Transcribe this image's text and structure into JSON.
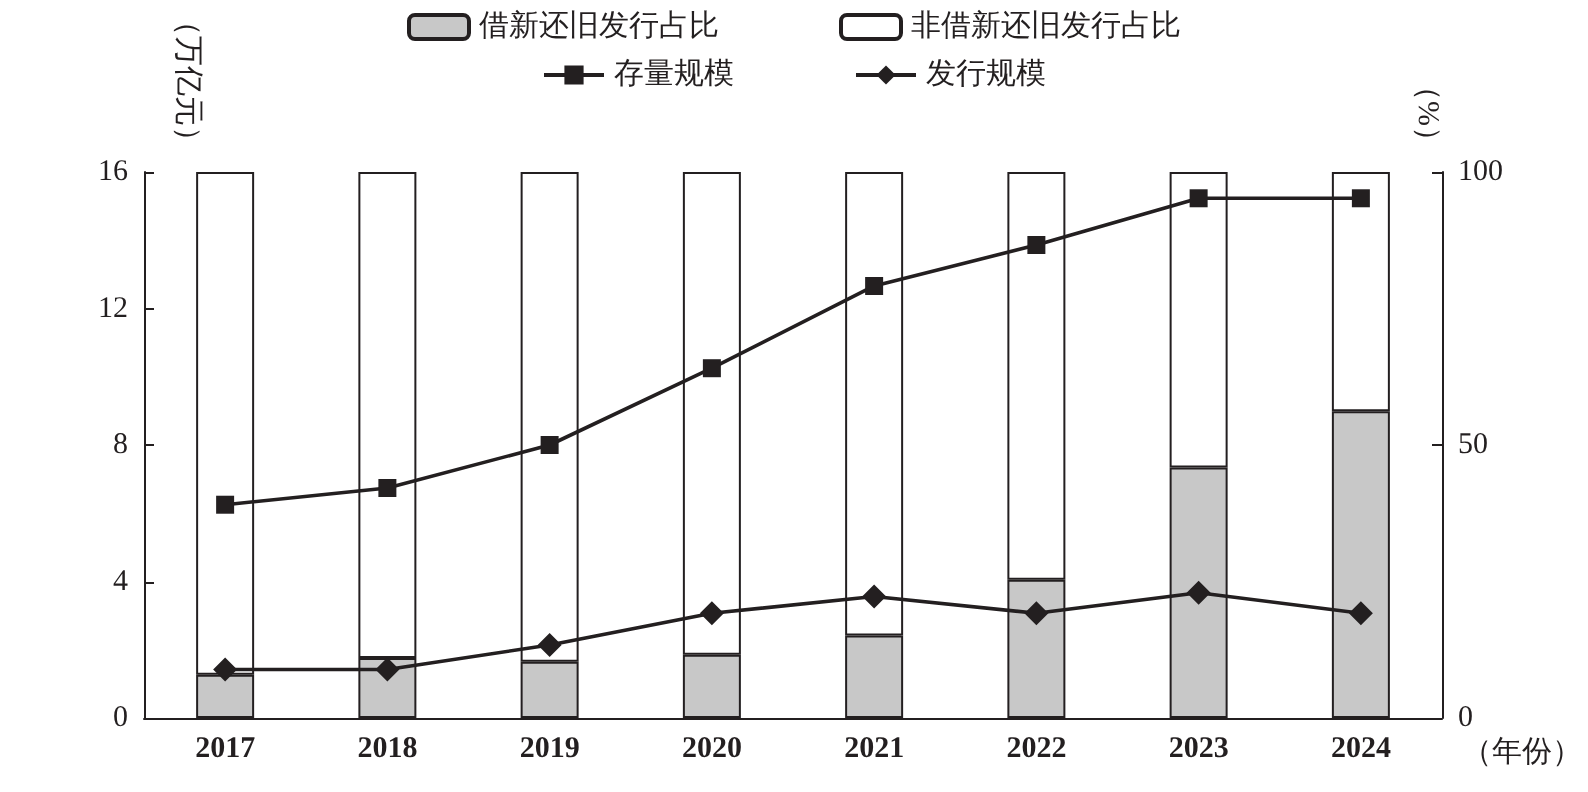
{
  "chart_data": {
    "type": "bar",
    "stacked": true,
    "categories": [
      "2017",
      "2018",
      "2019",
      "2020",
      "2021",
      "2022",
      "2023",
      "2024"
    ],
    "xlabel": "（年份）",
    "ylabel": "（万亿元）",
    "y2label": "（%）",
    "ylim": [
      0,
      16
    ],
    "yticks": [
      0,
      4,
      8,
      12,
      16
    ],
    "y2lim": [
      0,
      100
    ],
    "y2ticks": [
      0,
      50,
      100
    ],
    "grid": false,
    "legend": "top",
    "series": [
      {
        "name": "借新还旧发行占比",
        "axis": "y2",
        "color": "#c8c8c8",
        "values": [
          7.9,
          11.0,
          10.3,
          11.6,
          15.1,
          25.3,
          45.9,
          56.2
        ]
      },
      {
        "name": "非借新还旧发行占比",
        "axis": "y2",
        "color": "#ffffff",
        "values": [
          92.1,
          89.0,
          89.7,
          88.4,
          84.9,
          74.7,
          54.1,
          43.8
        ]
      },
      {
        "name": "存量规模",
        "type": "line",
        "color": "#231f20",
        "marker": "square",
        "values": [
          6.25,
          6.74,
          8.0,
          10.25,
          12.66,
          13.86,
          15.23,
          15.23
        ]
      },
      {
        "name": "发行规模",
        "type": "line",
        "color": "#231f20",
        "marker": "diamond",
        "values": [
          1.42,
          1.42,
          2.14,
          3.07,
          3.56,
          3.07,
          3.67,
          3.07
        ]
      }
    ]
  }
}
